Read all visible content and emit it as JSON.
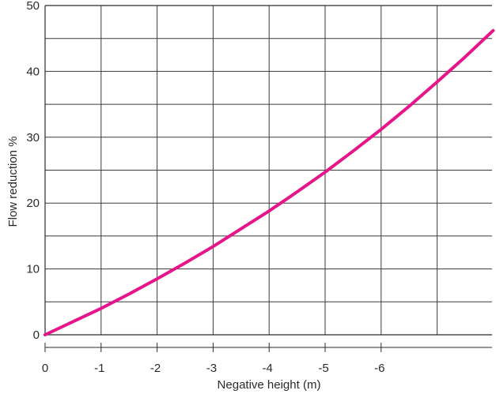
{
  "chart_data": {
    "type": "line",
    "title": "",
    "xlabel": "Negative height (m)",
    "ylabel": "Flow reduction %",
    "x_tick_labels": [
      "0",
      "-1",
      "-2",
      "-3",
      "-4",
      "-5",
      "-6"
    ],
    "y_tick_labels": [
      "0",
      "10",
      "20",
      "30",
      "40",
      "50"
    ],
    "xlim": [
      0,
      -8
    ],
    "ylim": [
      0,
      50
    ],
    "grid": true,
    "legend": "none",
    "series": [
      {
        "color": "#e6168a",
        "x": [
          0,
          -0.5,
          -1,
          -1.5,
          -2,
          -2.5,
          -3,
          -3.5,
          -4,
          -4.5,
          -5,
          -5.5,
          -6,
          -6.5,
          -7,
          -7.5,
          -8
        ],
        "y": [
          0,
          2.0,
          4.0,
          6.2,
          8.5,
          10.9,
          13.4,
          16.1,
          18.8,
          21.7,
          24.7,
          27.9,
          31.2,
          34.7,
          38.4,
          42.2,
          46.2
        ]
      }
    ]
  }
}
